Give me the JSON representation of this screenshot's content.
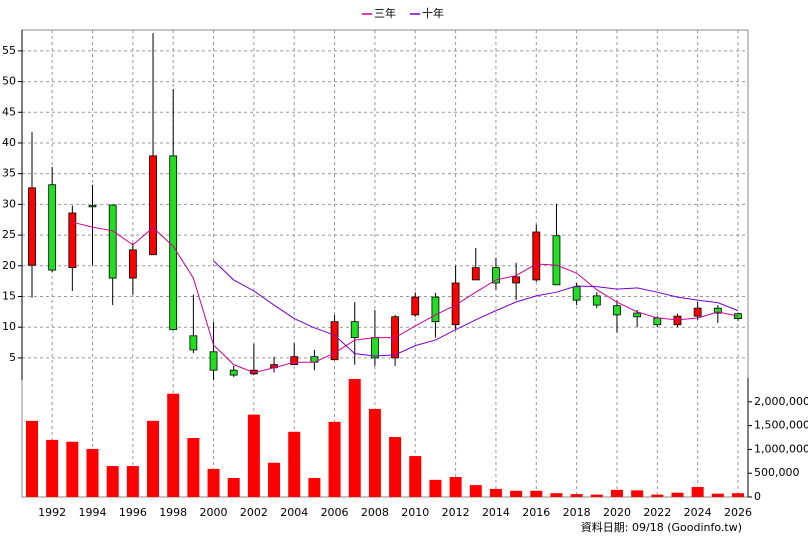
{
  "chart_data": {
    "type": "candlestick",
    "categories": [
      null,
      "1992",
      null,
      "1994",
      null,
      "1996",
      null,
      "1998",
      null,
      "2000",
      null,
      "2002",
      null,
      "2004",
      null,
      "2006",
      null,
      "2008",
      null,
      "2010",
      null,
      "2012",
      null,
      "2014",
      null,
      "2016",
      null,
      "2018",
      null,
      "2020",
      null,
      "2022",
      null,
      "2024",
      null,
      "2026"
    ],
    "open": [
      20.1,
      33.2,
      19.7,
      29.8,
      29.9,
      18.0,
      21.8,
      37.9,
      8.6,
      6.0,
      3.0,
      2.4,
      3.4,
      3.9,
      5.2,
      4.7,
      10.9,
      8.3,
      5.0,
      12.0,
      14.9,
      10.4,
      17.7,
      19.7,
      17.2,
      17.7,
      24.9,
      16.6,
      15.1,
      13.5,
      12.3,
      11.5,
      10.4,
      11.8,
      13.1,
      12.2
    ],
    "high": [
      41.8,
      36.1,
      29.8,
      33.2,
      29.9,
      23.7,
      57.9,
      48.8,
      15.3,
      10.9,
      3.7,
      7.3,
      5.2,
      7.4,
      6.3,
      12.0,
      14.1,
      12.8,
      12.0,
      15.7,
      15.6,
      20.0,
      22.9,
      21.3,
      20.5,
      26.7,
      30.1,
      17.2,
      15.7,
      14.4,
      12.8,
      11.8,
      12.2,
      14.1,
      13.6,
      12.3
    ],
    "low": [
      14.8,
      19.0,
      15.9,
      20.1,
      13.6,
      15.3,
      21.8,
      9.6,
      5.8,
      1.4,
      1.9,
      2.2,
      2.6,
      3.9,
      3.0,
      4.7,
      3.9,
      3.7,
      3.7,
      11.7,
      8.3,
      9.6,
      17.7,
      16.1,
      14.4,
      17.4,
      16.9,
      13.6,
      13.1,
      9.1,
      10.0,
      10.0,
      10.0,
      11.2,
      10.7,
      11.0
    ],
    "close": [
      32.7,
      19.3,
      28.6,
      29.6,
      18.0,
      22.6,
      37.9,
      9.6,
      6.3,
      3.0,
      2.2,
      3.0,
      3.9,
      5.2,
      4.3,
      10.9,
      8.3,
      5.0,
      11.7,
      14.9,
      10.9,
      17.2,
      19.7,
      17.2,
      18.2,
      25.5,
      16.9,
      14.4,
      13.6,
      12.0,
      11.7,
      10.4,
      11.8,
      13.1,
      12.3,
      11.4
    ],
    "up_color": "#ff0000",
    "down_color": "#22dd22",
    "lines": [
      {
        "name": "三年",
        "color": "#cc0099",
        "values": [
          null,
          null,
          27.1,
          26.3,
          25.7,
          23.4,
          26.2,
          23.2,
          18.0,
          7.1,
          3.9,
          2.6,
          3.4,
          4.3,
          4.3,
          5.8,
          7.9,
          8.3,
          8.3,
          10.2,
          12.0,
          13.6,
          15.7,
          17.7,
          18.4,
          20.3,
          20.1,
          18.8,
          16.1,
          14.1,
          12.5,
          11.5,
          11.2,
          11.5,
          12.5,
          11.8
        ]
      },
      {
        "name": "十年",
        "color": "#7700cc",
        "values": [
          null,
          null,
          null,
          null,
          null,
          null,
          null,
          null,
          null,
          20.8,
          17.7,
          15.9,
          13.6,
          11.4,
          9.9,
          8.7,
          5.7,
          5.3,
          5.5,
          7.0,
          7.9,
          9.6,
          11.2,
          12.7,
          14.1,
          15.1,
          15.7,
          16.7,
          16.6,
          16.2,
          16.4,
          15.7,
          14.9,
          14.4,
          14.0,
          12.7
        ]
      }
    ],
    "ylim": [
      1.4,
      58.4
    ],
    "yticks": [
      5,
      10,
      15,
      20,
      25,
      30,
      35,
      40,
      45,
      50,
      55
    ],
    "grid": true,
    "volume": {
      "color": "#ff0000",
      "values": [
        1600000,
        1200000,
        1160000,
        1010000,
        650000,
        650000,
        1600000,
        2170000,
        1240000,
        590000,
        400000,
        1730000,
        720000,
        1370000,
        400000,
        1580000,
        2480000,
        1850000,
        1260000,
        860000,
        360000,
        420000,
        250000,
        170000,
        130000,
        130000,
        80000,
        60000,
        50000,
        150000,
        140000,
        50000,
        90000,
        210000,
        70000,
        80000
      ],
      "ylim": [
        0,
        2500000
      ],
      "yticks": [
        0,
        {
          "value": 500000,
          "label": "500,000"
        },
        {
          "value": 1000000,
          "label": "1,000,000"
        },
        {
          "value": 1500000,
          "label": "1,500,000"
        },
        {
          "value": 2000000,
          "label": "2,000,000"
        }
      ]
    },
    "footnote": "資料日期: 09/18 (Goodinfo.tw)"
  }
}
